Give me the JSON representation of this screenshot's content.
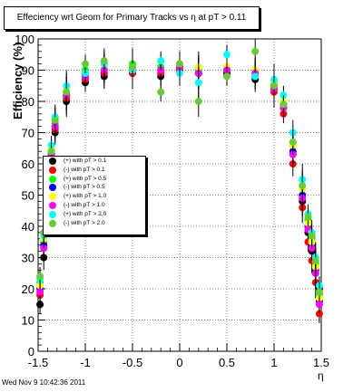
{
  "title": "Effeciency wrt Geom for Primary Tracks vs   η at pT > 0.11",
  "timestamp": "Wed Nov  9 10:42:36 2011",
  "colors": [
    "#000000",
    "#ff0000",
    "#00ff00",
    "#0000ff",
    "#ffff00",
    "#ff00ff",
    "#00ffff",
    "#66cc33"
  ],
  "chart_data": {
    "type": "scatter",
    "xlabel": "η",
    "ylabel": "Efficiency (%)",
    "xlim": [
      -1.5,
      1.5
    ],
    "ylim": [
      0,
      100
    ],
    "x_ticks": [
      "-1.5",
      "-1",
      "-0.5",
      "0",
      "0.5",
      "1",
      "1.5"
    ],
    "y_ticks": [
      "0",
      "10",
      "20",
      "30",
      "40",
      "50",
      "60",
      "70",
      "80",
      "90",
      "100"
    ],
    "legend_position": "middle-left",
    "series": [
      {
        "name": "(+) with pT > 0.1",
        "color": "#000000",
        "x": [
          -1.48,
          -1.44,
          -1.4,
          -1.36,
          -1.32,
          -1.2,
          -1.0,
          -0.8,
          -0.5,
          -0.2,
          0.0,
          0.2,
          0.5,
          0.8,
          1.0,
          1.1,
          1.2,
          1.3,
          1.36,
          1.4,
          1.44,
          1.48
        ],
        "y": [
          15,
          30,
          46,
          60,
          70,
          80,
          86,
          88,
          89,
          88,
          90,
          89,
          89,
          87,
          84,
          78,
          63,
          48,
          38,
          32,
          25,
          20
        ]
      },
      {
        "name": "(-) with pT > 0.1",
        "color": "#ff0000",
        "x": [
          -1.48,
          -1.44,
          -1.4,
          -1.36,
          -1.32,
          -1.2,
          -1.0,
          -0.8,
          -0.5,
          -0.2,
          0.0,
          0.2,
          0.5,
          0.8,
          1.0,
          1.1,
          1.2,
          1.3,
          1.36,
          1.4,
          1.44,
          1.48
        ],
        "y": [
          18,
          33,
          48,
          62,
          71,
          81,
          87,
          89,
          89,
          89,
          90,
          89,
          90,
          88,
          83,
          76,
          60,
          46,
          35,
          29,
          22,
          12
        ]
      },
      {
        "name": "(+) with pT > 0.5",
        "color": "#00ff00",
        "x": [
          -1.48,
          -1.44,
          -1.4,
          -1.36,
          -1.32,
          -1.2,
          -1.0,
          -0.8,
          -0.5,
          -0.2,
          0.0,
          0.2,
          0.5,
          0.8,
          1.0,
          1.1,
          1.2,
          1.3,
          1.36,
          1.4,
          1.44,
          1.48
        ],
        "y": [
          22,
          35,
          52,
          64,
          73,
          83,
          90,
          91,
          92,
          91,
          92,
          90,
          91,
          90,
          86,
          80,
          66,
          52,
          42,
          36,
          28,
          18
        ]
      },
      {
        "name": "(-) with pT > 0.5",
        "color": "#0000ff",
        "x": [
          -1.48,
          -1.44,
          -1.4,
          -1.36,
          -1.32,
          -1.2,
          -1.0,
          -0.8,
          -0.5,
          -0.2,
          0.0,
          0.2,
          0.5,
          0.8,
          1.0,
          1.1,
          1.2,
          1.3,
          1.36,
          1.4,
          1.44,
          1.48
        ],
        "y": [
          20,
          34,
          50,
          63,
          72,
          82,
          88,
          90,
          90,
          90,
          91,
          89,
          90,
          89,
          85,
          79,
          64,
          50,
          40,
          34,
          26,
          16
        ]
      },
      {
        "name": "(+) with pT > 1.0",
        "color": "#ffff00",
        "x": [
          -1.48,
          -1.44,
          -1.4,
          -1.36,
          -1.32,
          -1.2,
          -1.0,
          -0.8,
          -0.5,
          -0.2,
          0.0,
          0.2,
          0.5,
          0.8,
          1.0,
          1.1,
          1.2,
          1.3,
          1.36,
          1.4,
          1.44,
          1.48
        ],
        "y": [
          21,
          36,
          51,
          65,
          74,
          84,
          89,
          91,
          91,
          90,
          92,
          91,
          91,
          90,
          86,
          80,
          66,
          52,
          41,
          35,
          27,
          17
        ]
      },
      {
        "name": "(-) with pT > 1.0",
        "color": "#ff00ff",
        "x": [
          -1.48,
          -1.44,
          -1.4,
          -1.36,
          -1.32,
          -1.2,
          -1.0,
          -0.8,
          -0.5,
          -0.2,
          0.0,
          0.2,
          0.5,
          0.8,
          1.0,
          1.1,
          1.2,
          1.3,
          1.36,
          1.4,
          1.44,
          1.48
        ],
        "y": [
          19,
          33,
          49,
          63,
          72,
          82,
          88,
          90,
          90,
          90,
          91,
          89,
          90,
          89,
          84,
          78,
          63,
          49,
          39,
          33,
          25,
          15
        ]
      },
      {
        "name": "(+) with pT > 2.0",
        "color": "#00ffff",
        "x": [
          -1.48,
          -1.44,
          -1.4,
          -1.36,
          -1.32,
          -1.2,
          -1.0,
          -0.8,
          -0.5,
          -0.2,
          0.0,
          0.2,
          0.5,
          0.8,
          1.0,
          1.1,
          1.2,
          1.3,
          1.36,
          1.4,
          1.44,
          1.48
        ],
        "y": [
          23,
          37,
          55,
          66,
          75,
          85,
          89,
          92,
          90,
          93,
          89,
          86,
          95,
          88,
          87,
          82,
          70,
          55,
          44,
          38,
          30,
          21
        ]
      },
      {
        "name": "(-) with pT > 2.0",
        "color": "#66cc33",
        "x": [
          -1.48,
          -1.44,
          -1.4,
          -1.36,
          -1.32,
          -1.2,
          -1.0,
          -0.8,
          -0.5,
          -0.2,
          0.0,
          0.2,
          0.5,
          0.8,
          1.0,
          1.1,
          1.2,
          1.3,
          1.36,
          1.4,
          1.44,
          1.48
        ],
        "y": [
          24,
          38,
          53,
          64,
          74,
          83,
          92,
          93,
          91,
          83,
          92,
          80,
          88,
          96,
          85,
          79,
          67,
          53,
          43,
          37,
          29,
          19
        ]
      }
    ]
  }
}
